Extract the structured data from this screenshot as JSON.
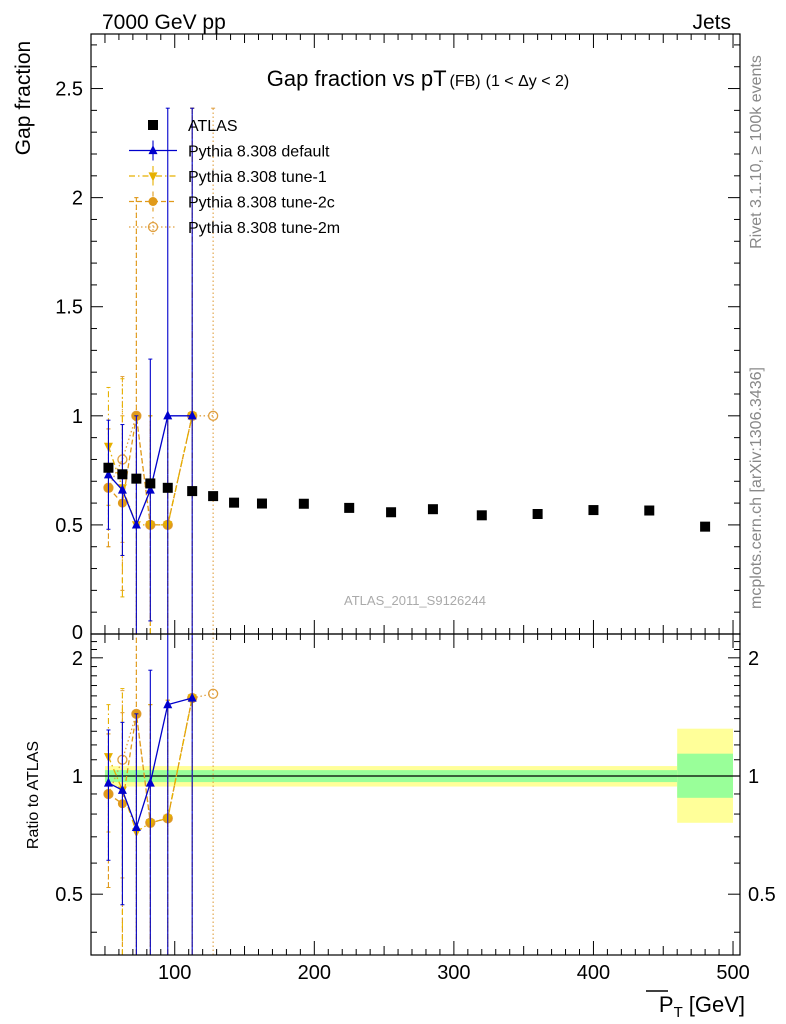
{
  "header": {
    "left": "7000 GeV pp",
    "right": "Jets"
  },
  "side_text": {
    "upper": "Rivet 3.1.10, ≥ 100k events",
    "lower": "mcplots.cern.ch [arXiv:1306.3436]"
  },
  "watermark": "ATLAS_2011_S9126244",
  "chart_data": [
    {
      "type": "scatter",
      "title": "Gap fraction vs pT",
      "title_sub": "(FB)",
      "title_extra": "(1 < Δy < 2)",
      "ylabel": "Gap fraction",
      "xlim": [
        40,
        505
      ],
      "ylim": [
        0,
        2.75
      ],
      "yticks": [
        0.5,
        1,
        1.5,
        2,
        2.5
      ],
      "ytick_labels": [
        "0.5",
        "1",
        "1.5",
        "2",
        "2.5"
      ],
      "y_min_label": "0",
      "legend_position": "top-left",
      "series": [
        {
          "name": "ATLAS",
          "marker": "square",
          "color": "#000000",
          "x": [
            52.5,
            62.5,
            72.5,
            82.5,
            95,
            112.5,
            127.5,
            142.5,
            162.5,
            192.5,
            225,
            255,
            285,
            320,
            360,
            400,
            440,
            480
          ],
          "y": [
            0.762,
            0.732,
            0.712,
            0.69,
            0.67,
            0.655,
            0.632,
            0.602,
            0.598,
            0.597,
            0.578,
            0.558,
            0.572,
            0.544,
            0.55,
            0.568,
            0.566,
            0.492
          ],
          "err": [
            0.015,
            0.015,
            0.015,
            0.015,
            0.015,
            0.015,
            0.015,
            0.015,
            0.015,
            0.015,
            0.015,
            0.015,
            0.015,
            0.015,
            0.015,
            0.015,
            0.015,
            0.015
          ]
        },
        {
          "name": "Pythia 8.308 default",
          "marker": "triangle-up",
          "color": "#0000cc",
          "line": "solid",
          "x": [
            52.5,
            62.5,
            72.5,
            82.5,
            95,
            112.5
          ],
          "y": [
            0.73,
            0.66,
            0.5,
            0.66,
            1.0,
            1.0
          ],
          "err": [
            0.25,
            0.3,
            0.5,
            0.6,
            1.41,
            1.41
          ]
        },
        {
          "name": "Pythia 8.308 tune-1",
          "marker": "triangle-down",
          "color": "#e6b000",
          "line": "dashdot",
          "x": [
            52.5,
            62.5,
            72.5,
            82.5,
            95,
            112.5
          ],
          "y": [
            0.86,
            0.67,
            0.5,
            0.5,
            0.5,
            1.0
          ],
          "err": [
            0.27,
            0.5,
            0.5,
            0.5,
            0.5,
            1.41
          ]
        },
        {
          "name": "Pythia 8.308 tune-2c",
          "marker": "circle",
          "color": "#e09a1a",
          "line": "dashed",
          "x": [
            52.5,
            62.5,
            72.5,
            82.5,
            95,
            112.5
          ],
          "y": [
            0.67,
            0.6,
            1.0,
            0.5,
            0.5,
            1.0
          ],
          "err": [
            0.27,
            0.4,
            1.0,
            0.5,
            0.5,
            1.41
          ]
        },
        {
          "name": "Pythia 8.308 tune-2m",
          "marker": "circle-open",
          "color": "#e0a040",
          "line": "dotted",
          "x": [
            52.5,
            62.5,
            72.5,
            82.5,
            95,
            112.5,
            127.5
          ],
          "y": [
            0.67,
            0.8,
            1.0,
            0.5,
            0.5,
            1.0,
            1.0
          ],
          "err": [
            0.27,
            0.38,
            1.0,
            0.5,
            0.5,
            1.41,
            1.41
          ]
        }
      ]
    },
    {
      "type": "scatter",
      "ylabel": "Ratio to ATLAS",
      "xlabel": "P",
      "xlabel_sub": "T",
      "xlabel_unit": "[GeV]",
      "xlim": [
        40,
        505
      ],
      "xticks": [
        100,
        200,
        300,
        400,
        500
      ],
      "xtick_labels": [
        "100",
        "200",
        "300",
        "400",
        "500"
      ],
      "ylim": [
        0.35,
        2.3
      ],
      "ylog": true,
      "yticks": [
        0.5,
        1,
        2
      ],
      "ytick_labels": [
        "0.5",
        "1",
        "2"
      ],
      "bands": [
        {
          "x0": 50,
          "x1": 460,
          "green": [
            0.965,
            1.035
          ],
          "yellow": [
            0.94,
            1.06
          ]
        },
        {
          "x0": 460,
          "x1": 500,
          "green": [
            0.88,
            1.14
          ],
          "yellow": [
            0.76,
            1.32
          ]
        }
      ],
      "series": [
        {
          "name": "Pythia 8.308 default",
          "marker": "triangle-up",
          "color": "#0000cc",
          "line": "solid",
          "x": [
            52.5,
            62.5,
            72.5,
            82.5,
            95,
            112.5
          ],
          "y": [
            0.96,
            0.92,
            0.74,
            0.96,
            1.52,
            1.58
          ],
          "err": [
            0.35,
            0.45,
            0.7,
            0.9,
            2.0,
            2.0
          ]
        },
        {
          "name": "Pythia 8.308 tune-1",
          "marker": "triangle-down",
          "color": "#e6b000",
          "line": "dashdot",
          "x": [
            52.5,
            62.5,
            72.5,
            82.5,
            95,
            112.5
          ],
          "y": [
            1.12,
            0.92,
            0.72,
            0.76,
            0.78,
            1.58
          ],
          "err": [
            0.4,
            0.75,
            0.72,
            0.76,
            0.78,
            2.0
          ]
        },
        {
          "name": "Pythia 8.308 tune-2c",
          "marker": "circle",
          "color": "#e09a1a",
          "line": "dashed",
          "x": [
            52.5,
            62.5,
            72.5,
            82.5,
            95,
            112.5
          ],
          "y": [
            0.9,
            0.85,
            1.44,
            0.76,
            0.78,
            1.58
          ],
          "err": [
            0.38,
            0.6,
            1.44,
            0.76,
            0.78,
            2.0
          ]
        },
        {
          "name": "Pythia 8.308 tune-2m",
          "marker": "circle-open",
          "color": "#e0a040",
          "line": "dotted",
          "x": [
            52.5,
            62.5,
            72.5,
            82.5,
            95,
            112.5,
            127.5
          ],
          "y": [
            0.9,
            1.1,
            1.44,
            0.76,
            0.78,
            1.58,
            1.62
          ],
          "err": [
            0.38,
            0.55,
            1.44,
            0.76,
            0.78,
            2.0,
            2.0
          ]
        }
      ]
    }
  ]
}
